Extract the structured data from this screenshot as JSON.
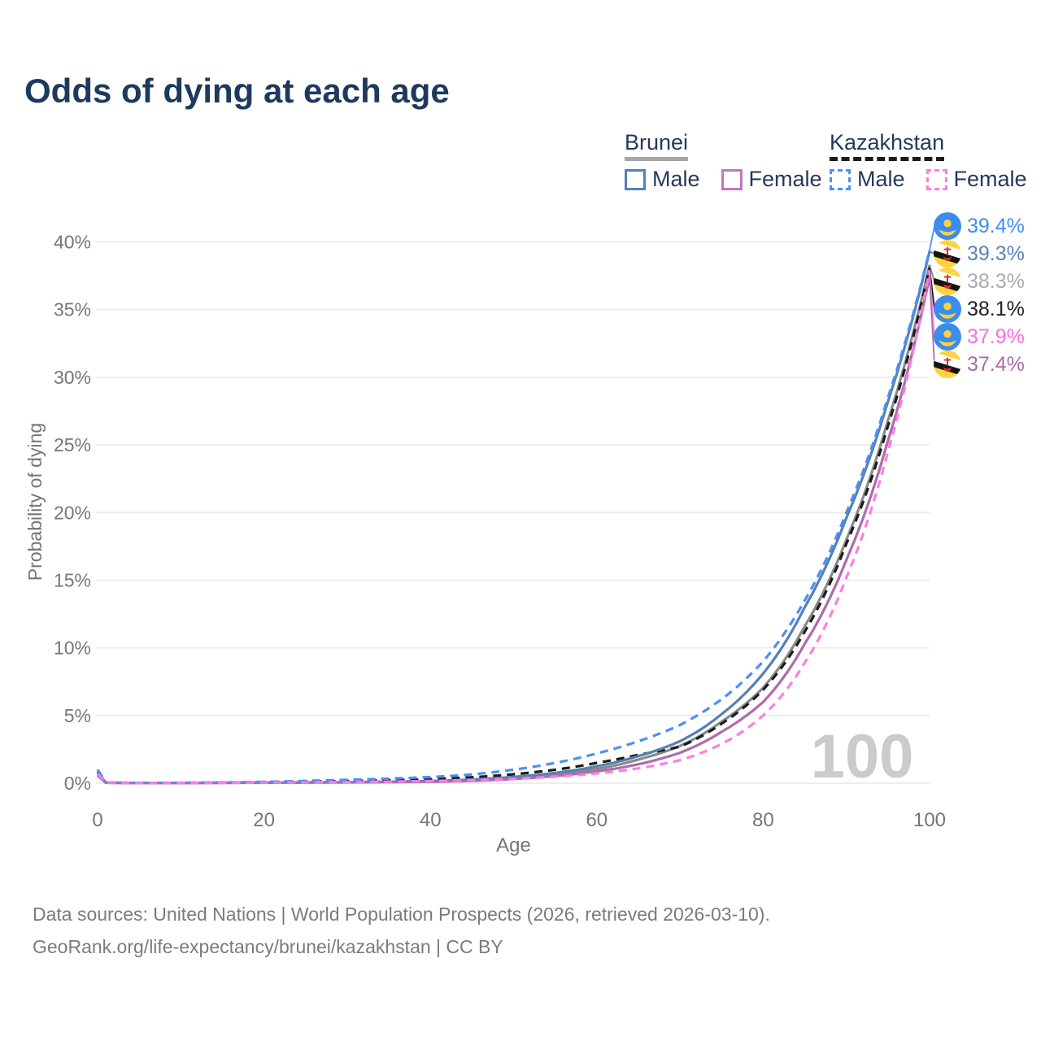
{
  "title": "Odds of dying at each age",
  "legend": {
    "groups": [
      {
        "label": "Brunei",
        "underline": "solid",
        "underline_color": "#a6a6a6",
        "items": [
          {
            "label": "Male",
            "color": "#5581b5",
            "dashed": false
          },
          {
            "label": "Female",
            "color": "#bd7ab8",
            "dashed": false
          }
        ]
      },
      {
        "label": "Kazakhstan",
        "underline": "dashed",
        "underline_color": "#1c1c1c",
        "items": [
          {
            "label": "Male",
            "color": "#4a90f4",
            "dashed": true
          },
          {
            "label": "Female",
            "color": "#fb7de7",
            "dashed": true
          }
        ]
      }
    ]
  },
  "watermark": "100",
  "footer": {
    "line1": "Data sources: United Nations | World Population Prospects (2026, retrieved 2026-03-10).",
    "line2": "GeoRank.org/life-expectancy/brunei/kazakhstan | CC BY"
  },
  "chart_data": {
    "type": "line",
    "title": "Odds of dying at each age",
    "xlabel": "Age",
    "ylabel": "Probability of dying",
    "xlim": [
      0,
      100
    ],
    "ylim_percent": [
      0,
      40
    ],
    "xticks": [
      0,
      20,
      40,
      60,
      80,
      100
    ],
    "yticks_percent": [
      0,
      5,
      10,
      15,
      20,
      25,
      30,
      35,
      40
    ],
    "ytick_suffix": "%",
    "grid": "horizontal",
    "legend_position": "top-right",
    "ages": [
      0,
      1,
      5,
      10,
      15,
      20,
      25,
      30,
      35,
      40,
      45,
      50,
      55,
      60,
      65,
      70,
      75,
      80,
      85,
      90,
      95,
      100
    ],
    "series": [
      {
        "name": "Kazakhstan Male",
        "country": "Kazakhstan",
        "sex": "Male",
        "style": "dashed",
        "color": "#4a90f4",
        "flag": "kz",
        "end_label": "39.4%",
        "end_label_color": "#3f8ef5",
        "end_value_percent": 39.4,
        "values": [
          1.0,
          0.06,
          0.025,
          0.03,
          0.06,
          0.1,
          0.17,
          0.25,
          0.34,
          0.45,
          0.65,
          1.0,
          1.5,
          2.2,
          3.1,
          4.3,
          6.2,
          9.0,
          13.5,
          20.0,
          28.5,
          39.4
        ]
      },
      {
        "name": "Brunei Male",
        "country": "Brunei",
        "sex": "Male",
        "style": "solid",
        "color": "#5581b5",
        "flag": "bn",
        "end_label": "39.3%",
        "end_label_color": "#5b83b8",
        "end_value_percent": 39.3,
        "values": [
          0.75,
          0.045,
          0.016,
          0.02,
          0.035,
          0.05,
          0.065,
          0.08,
          0.11,
          0.16,
          0.27,
          0.46,
          0.76,
          1.25,
          2.0,
          3.1,
          5.1,
          8.1,
          13.0,
          19.6,
          28.2,
          39.3
        ]
      },
      {
        "name": "Brunei Both sexes",
        "country": "Brunei",
        "sex": "Both",
        "style": "solid",
        "color": "#8a8a8a",
        "flag": "bn",
        "end_label": "38.3%",
        "end_label_color": "#ababab",
        "end_value_percent": 38.3,
        "values": [
          0.65,
          0.04,
          0.014,
          0.018,
          0.03,
          0.042,
          0.055,
          0.07,
          0.095,
          0.13,
          0.22,
          0.39,
          0.65,
          1.05,
          1.75,
          2.75,
          4.55,
          7.05,
          11.6,
          18.0,
          26.8,
          38.3
        ]
      },
      {
        "name": "Kazakhstan Both sexes",
        "country": "Kazakhstan",
        "sex": "Both",
        "style": "dashed",
        "color": "#1c1c1c",
        "flag": "kz",
        "end_label": "38.1%",
        "end_label_color": "#222222",
        "end_value_percent": 38.1,
        "values": [
          0.85,
          0.05,
          0.02,
          0.025,
          0.045,
          0.072,
          0.11,
          0.165,
          0.225,
          0.3,
          0.44,
          0.66,
          1.0,
          1.5,
          2.1,
          2.7,
          4.4,
          6.9,
          11.2,
          17.7,
          26.4,
          38.1
        ]
      },
      {
        "name": "Kazakhstan Female",
        "country": "Kazakhstan",
        "sex": "Female",
        "style": "dashed",
        "color": "#fb7de7",
        "flag": "kz",
        "end_label": "37.9%",
        "end_label_color": "#fa6ce1",
        "end_value_percent": 37.9,
        "values": [
          0.7,
          0.04,
          0.015,
          0.02,
          0.03,
          0.045,
          0.062,
          0.085,
          0.115,
          0.155,
          0.22,
          0.32,
          0.48,
          0.72,
          1.1,
          1.7,
          2.9,
          5.0,
          8.9,
          15.2,
          24.5,
          37.9
        ]
      },
      {
        "name": "Brunei Female",
        "country": "Brunei",
        "sex": "Female",
        "style": "solid",
        "color": "#ad6cab",
        "flag": "bn",
        "end_label": "37.4%",
        "end_label_color": "#a76fa5",
        "end_value_percent": 37.4,
        "values": [
          0.55,
          0.03,
          0.012,
          0.016,
          0.025,
          0.033,
          0.045,
          0.06,
          0.08,
          0.105,
          0.17,
          0.31,
          0.54,
          0.88,
          1.4,
          2.25,
          3.8,
          6.0,
          10.3,
          16.5,
          25.3,
          37.4
        ]
      }
    ]
  }
}
